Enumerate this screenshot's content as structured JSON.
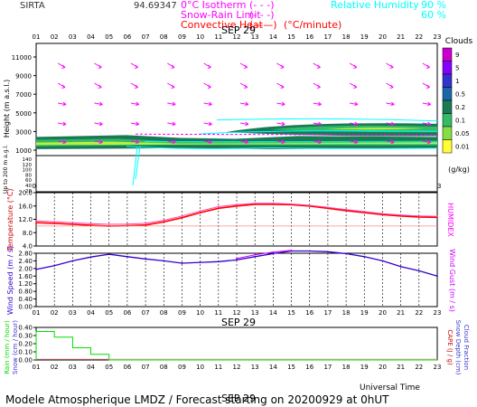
{
  "header": {
    "site": "SIRTA",
    "altitude_fragment": "94.69347",
    "legend_isotherm": "0°C Isotherm",
    "legend_snow": "Snow-Rain Limit",
    "legend_convective": "Convective Heat",
    "legend_convective_unit": "(°C/minute)",
    "legend_rh": "Relative Humidity",
    "legend_rh_90": "90 %",
    "legend_rh_60": "60 %"
  },
  "date_label": "SEP 29",
  "hours": [
    "01",
    "02",
    "03",
    "04",
    "05",
    "06",
    "07",
    "08",
    "09",
    "10",
    "11",
    "12",
    "13",
    "14",
    "15",
    "16",
    "17",
    "18",
    "19",
    "20",
    "21",
    "22",
    "23"
  ],
  "footer": {
    "universal_time": "Universal Time",
    "model": "Modele Atmospherique LMDZ / Forecast starting on 20200929 at 0hUT"
  },
  "colors": {
    "title_red": "#ff0000",
    "humidity_cyan": "#00ffff",
    "wind_arrow": "#ff00ff",
    "temp_red": "#ff0000",
    "humidex_pink": "#ff44aa",
    "wind_blue": "#3300cc",
    "gust_magenta": "#cc00ff",
    "rain_green": "#00dd00",
    "cloud_dark": "#1a7a55",
    "cloud_mid": "#33bb66",
    "cloud_light": "#bbee44"
  },
  "chart_data": [
    {
      "type": "heatmap",
      "name": "clouds",
      "ylabel": "Height (m a.s.l.)",
      "ylabel_low": "Up to 200 m a.g.l.",
      "yticks": [
        "11000",
        "9000",
        "7000",
        "5000",
        "3000",
        "1000",
        "140",
        "120",
        "100",
        "80",
        "60",
        "40",
        "20"
      ],
      "colorbar_title": "Clouds",
      "colorbar_unit": "(g/kg)",
      "colorbar_labels": [
        "9",
        "5",
        "1",
        "0.5",
        "0.2",
        "0.1",
        "0.05",
        "0.01"
      ],
      "colorbar_colors": [
        "#cc00cc",
        "#8800ff",
        "#3333cc",
        "#1a66aa",
        "#1a7a55",
        "#33bb66",
        "#88dd44",
        "#ffff33"
      ]
    },
    {
      "type": "line",
      "name": "temperature",
      "ylabel": "Temperature (°C)",
      "ylabel_right": "HUMIDEX",
      "ylim": [
        4,
        20
      ],
      "yticks": [
        "20.0",
        "16.0",
        "12.0",
        "8.0",
        "4.0"
      ],
      "x": [
        1,
        2,
        3,
        4,
        5,
        6,
        7,
        8,
        9,
        10,
        11,
        12,
        13,
        14,
        15,
        16,
        17,
        18,
        19,
        20,
        21,
        22,
        23
      ],
      "series": [
        {
          "values": [
            11.0,
            10.8,
            10.5,
            10.2,
            10.0,
            10.1,
            10.3,
            11.2,
            12.5,
            14.0,
            15.3,
            16.0,
            16.5,
            16.5,
            16.4,
            16.0,
            15.3,
            14.6,
            14.0,
            13.4,
            13.0,
            12.7,
            12.6
          ]
        },
        {
          "values": [
            11.5,
            11.3,
            11.0,
            10.7,
            10.5,
            10.6,
            10.8,
            11.7,
            13.0,
            14.5,
            15.8,
            16.4,
            16.8,
            16.8,
            16.6,
            16.2,
            15.6,
            14.9,
            14.3,
            13.7,
            13.3,
            13.0,
            12.9
          ]
        }
      ]
    },
    {
      "type": "line",
      "name": "wind",
      "ylabel": "Wind Speed (m / s)",
      "ylabel_right": "Wind Gust (m / s)",
      "ylim": [
        0,
        2.8
      ],
      "yticks": [
        "2.80",
        "2.40",
        "2.00",
        "1.60",
        "1.20",
        "0.80",
        "0.40",
        "0.00"
      ],
      "x": [
        1,
        2,
        3,
        4,
        5,
        6,
        7,
        8,
        9,
        10,
        11,
        12,
        13,
        14,
        15,
        16,
        17,
        18,
        19,
        20,
        21,
        22,
        23
      ],
      "series": [
        {
          "values": [
            1.95,
            2.15,
            2.4,
            2.6,
            2.75,
            2.62,
            2.5,
            2.4,
            2.28,
            2.32,
            2.36,
            2.45,
            2.62,
            2.78,
            2.92,
            2.92,
            2.88,
            2.78,
            2.62,
            2.4,
            2.1,
            1.88,
            1.6
          ]
        },
        {
          "values": [
            null,
            null,
            null,
            null,
            null,
            null,
            null,
            null,
            null,
            null,
            null,
            2.52,
            2.72,
            2.86,
            2.95,
            null,
            null,
            null,
            null,
            null,
            null,
            null,
            null
          ]
        }
      ]
    },
    {
      "type": "area",
      "name": "precipitation",
      "ylabel": "Rain (mm / hour)",
      "ylabel2": "Snow (cm / hour)",
      "ylabel_right": "CAPE (J / g)",
      "ylabel_right2": "Snow Depth (cm)",
      "ylabel_right3": "Cloud Fraction",
      "ylim": [
        0,
        0.4
      ],
      "yticks": [
        "0.40",
        "0.30",
        "0.20",
        "0.10",
        "0.00"
      ],
      "x": [
        1,
        2,
        3,
        4,
        5,
        6,
        7,
        8,
        9,
        10,
        11,
        12,
        13,
        14,
        15,
        16,
        17,
        18,
        19,
        20,
        21,
        22,
        23
      ],
      "series": [
        {
          "values": [
            0.35,
            0.28,
            0.15,
            0.07,
            0.0,
            0.0,
            0.0,
            0.0,
            0.0,
            0.0,
            0.0,
            0.0,
            0.0,
            0.0,
            0.0,
            0.0,
            0.0,
            0.0,
            0.0,
            0.0,
            0.0,
            0.0,
            0.0
          ]
        }
      ]
    }
  ]
}
